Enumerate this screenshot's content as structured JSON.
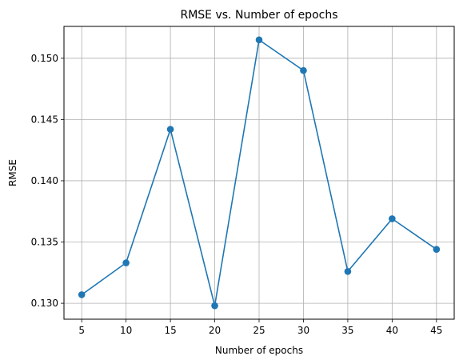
{
  "chart_data": {
    "type": "line",
    "title": "RMSE vs. Number of epochs",
    "xlabel": "Number of epochs",
    "ylabel": "RMSE",
    "x": [
      5,
      10,
      15,
      20,
      25,
      30,
      35,
      40,
      45
    ],
    "series": [
      {
        "values": [
          0.1307,
          0.1333,
          0.1442,
          0.1298,
          0.1515,
          0.149,
          0.1326,
          0.1369,
          0.1344
        ],
        "color": "#1f77b4",
        "marker": "circle"
      }
    ],
    "xticks": [
      5,
      10,
      15,
      20,
      25,
      30,
      35,
      40,
      45
    ],
    "yticks": [
      0.13,
      0.135,
      0.14,
      0.145,
      0.15
    ],
    "ytick_labels": [
      "0.130",
      "0.135",
      "0.140",
      "0.145",
      "0.150"
    ],
    "xlim": [
      3,
      47
    ],
    "ylim": [
      0.1287,
      0.1526
    ],
    "grid": true
  }
}
